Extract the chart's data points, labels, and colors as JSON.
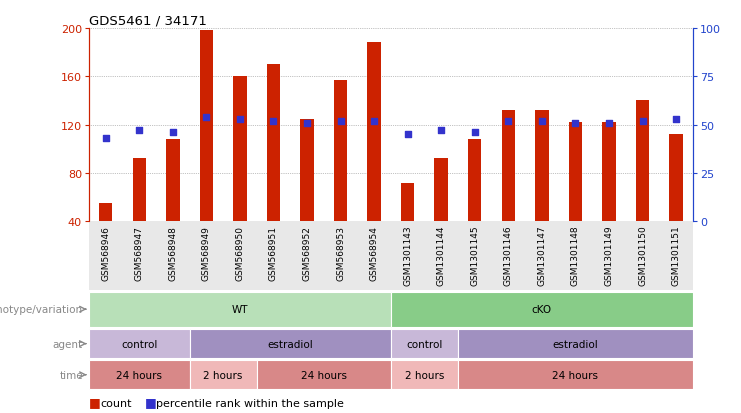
{
  "title": "GDS5461 / 34171",
  "samples": [
    "GSM568946",
    "GSM568947",
    "GSM568948",
    "GSM568949",
    "GSM568950",
    "GSM568951",
    "GSM568952",
    "GSM568953",
    "GSM568954",
    "GSM1301143",
    "GSM1301144",
    "GSM1301145",
    "GSM1301146",
    "GSM1301147",
    "GSM1301148",
    "GSM1301149",
    "GSM1301150",
    "GSM1301151"
  ],
  "counts": [
    55,
    92,
    108,
    198,
    160,
    170,
    125,
    157,
    188,
    72,
    92,
    108,
    132,
    132,
    122,
    122,
    140,
    112
  ],
  "percentile_ranks": [
    43,
    47,
    46,
    54,
    53,
    52,
    51,
    52,
    52,
    45,
    47,
    46,
    52,
    52,
    51,
    51,
    52,
    53
  ],
  "bar_color": "#cc2200",
  "marker_color": "#3333cc",
  "ylim_left": [
    40,
    200
  ],
  "yticks_left": [
    40,
    80,
    120,
    160,
    200
  ],
  "ylim_right": [
    0,
    100
  ],
  "yticks_right": [
    0,
    25,
    50,
    75,
    100
  ],
  "genotype_groups": [
    {
      "label": "WT",
      "start": 0,
      "end": 9,
      "color": "#b8e0b8"
    },
    {
      "label": "cKO",
      "start": 9,
      "end": 18,
      "color": "#88cc88"
    }
  ],
  "agent_groups": [
    {
      "label": "control",
      "start": 0,
      "end": 3,
      "color": "#c8b8d8"
    },
    {
      "label": "estradiol",
      "start": 3,
      "end": 9,
      "color": "#a090c0"
    },
    {
      "label": "control",
      "start": 9,
      "end": 11,
      "color": "#c8b8d8"
    },
    {
      "label": "estradiol",
      "start": 11,
      "end": 18,
      "color": "#a090c0"
    }
  ],
  "time_groups": [
    {
      "label": "24 hours",
      "start": 0,
      "end": 3,
      "color": "#d88888"
    },
    {
      "label": "2 hours",
      "start": 3,
      "end": 5,
      "color": "#f0b8b8"
    },
    {
      "label": "24 hours",
      "start": 5,
      "end": 9,
      "color": "#d88888"
    },
    {
      "label": "2 hours",
      "start": 9,
      "end": 11,
      "color": "#f0b8b8"
    },
    {
      "label": "24 hours",
      "start": 11,
      "end": 18,
      "color": "#d88888"
    }
  ],
  "legend_count_color": "#cc2200",
  "legend_marker_color": "#3333cc",
  "background_color": "#ffffff",
  "left_label_color": "#cc2200",
  "right_label_color": "#2244cc",
  "grid_color": "#888888",
  "row_labels": [
    "genotype/variation",
    "agent",
    "time"
  ],
  "row_label_color": "#888888"
}
